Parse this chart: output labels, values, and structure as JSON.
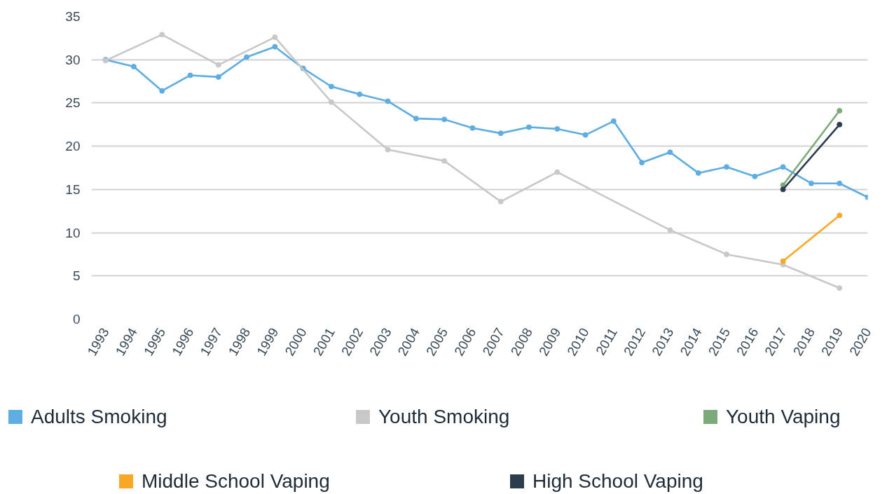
{
  "chart_data": {
    "type": "line",
    "x": [
      1993,
      1994,
      1995,
      1996,
      1997,
      1998,
      1999,
      2000,
      2001,
      2002,
      2003,
      2004,
      2005,
      2006,
      2007,
      2008,
      2009,
      2010,
      2011,
      2012,
      2013,
      2014,
      2015,
      2016,
      2017,
      2018,
      2019,
      2020
    ],
    "xlim": [
      1992.5,
      2020
    ],
    "xticks": [
      1993,
      1994,
      1995,
      1996,
      1997,
      1998,
      1999,
      2000,
      2001,
      2002,
      2003,
      2004,
      2005,
      2006,
      2007,
      2008,
      2009,
      2010,
      2011,
      2012,
      2013,
      2014,
      2015,
      2016,
      2017,
      2018,
      2019,
      2020
    ],
    "ylim": [
      0,
      35
    ],
    "yticks": [
      0,
      5,
      10,
      15,
      20,
      25,
      30,
      35
    ],
    "grid": "y",
    "legend": "bottom",
    "marker": "circle",
    "line_style": "solid",
    "series": [
      {
        "name": "Adults Smoking",
        "color": "#5dade2",
        "values": [
          30.0,
          29.2,
          26.4,
          28.2,
          28.0,
          30.3,
          31.5,
          29.0,
          26.9,
          26.0,
          25.2,
          23.2,
          23.1,
          22.1,
          21.5,
          22.2,
          22.0,
          21.3,
          22.9,
          18.1,
          19.3,
          16.9,
          17.6,
          16.5,
          17.6,
          15.7,
          15.7,
          14.1
        ]
      },
      {
        "name": "Youth Smoking",
        "color": "#c8c8c8",
        "x": [
          1993,
          1995,
          1997,
          1999,
          2001,
          2003,
          2005,
          2007,
          2009,
          2013,
          2015,
          2017,
          2019
        ],
        "values": [
          29.9,
          32.9,
          29.4,
          32.6,
          25.1,
          19.6,
          18.3,
          13.6,
          17.0,
          10.3,
          7.5,
          6.3,
          3.6
        ]
      },
      {
        "name": "Youth Vaping",
        "color": "#7daa7a",
        "x": [
          2017,
          2019
        ],
        "values": [
          15.5,
          24.1
        ]
      },
      {
        "name": "Middle School Vaping",
        "color": "#f9a825",
        "x": [
          2017,
          2019
        ],
        "values": [
          6.7,
          12.0
        ]
      },
      {
        "name": "High School Vaping",
        "color": "#2c3e4e",
        "x": [
          2017,
          2019
        ],
        "values": [
          15.0,
          22.5
        ]
      }
    ]
  }
}
